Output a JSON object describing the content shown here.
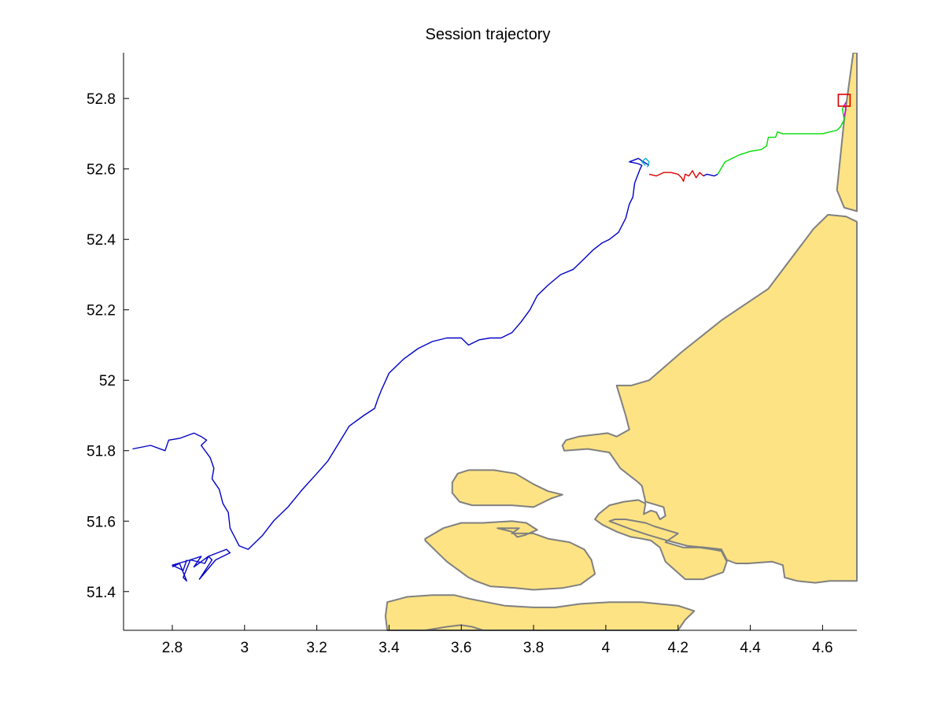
{
  "chart_data": {
    "type": "line",
    "title": "Session trajectory",
    "xlabel": "",
    "ylabel": "",
    "xlim": [
      2.665,
      4.695
    ],
    "ylim": [
      51.29,
      52.93
    ],
    "x_ticks": [
      2.8,
      3,
      3.2,
      3.4,
      3.6,
      3.8,
      4,
      4.2,
      4.4,
      4.6
    ],
    "x_tick_labels": [
      "2.8",
      "3",
      "3.2",
      "3.4",
      "3.6",
      "3.8",
      "4",
      "4.2",
      "4.4",
      "4.6"
    ],
    "y_ticks": [
      51.4,
      51.6,
      51.8,
      52,
      52.2,
      52.4,
      52.6,
      52.8
    ],
    "y_tick_labels": [
      "51.4",
      "51.6",
      "51.8",
      "52",
      "52.2",
      "52.4",
      "52.6",
      "52.8"
    ],
    "grid": false,
    "colors": {
      "land_fill": "#fde383",
      "coast_line": "#808080",
      "axis": "#000000"
    },
    "land": [
      [
        [
          4.685,
          52.93
        ],
        [
          4.66,
          52.74
        ],
        [
          4.64,
          52.54
        ],
        [
          4.66,
          52.49
        ],
        [
          4.695,
          52.48
        ],
        [
          4.695,
          52.93
        ]
      ],
      [
        [
          4.695,
          52.45
        ],
        [
          4.665,
          52.465
        ],
        [
          4.615,
          52.47
        ],
        [
          4.575,
          52.43
        ],
        [
          4.45,
          52.26
        ],
        [
          4.32,
          52.17
        ],
        [
          4.21,
          52.08
        ],
        [
          4.12,
          52.0
        ],
        [
          4.07,
          51.985
        ],
        [
          4.03,
          51.985
        ],
        [
          4.055,
          51.9
        ],
        [
          4.065,
          51.86
        ],
        [
          4.03,
          51.84
        ],
        [
          4.005,
          51.85
        ],
        [
          3.925,
          51.84
        ],
        [
          3.89,
          51.83
        ],
        [
          3.88,
          51.815
        ],
        [
          3.885,
          51.8
        ],
        [
          3.95,
          51.805
        ],
        [
          4.01,
          51.795
        ],
        [
          4.04,
          51.75
        ],
        [
          4.09,
          51.71
        ],
        [
          4.1,
          51.7
        ],
        [
          4.11,
          51.655
        ],
        [
          4.16,
          51.64
        ],
        [
          4.165,
          51.615
        ],
        [
          4.15,
          51.605
        ],
        [
          4.14,
          51.625
        ],
        [
          4.125,
          51.63
        ],
        [
          4.105,
          51.62
        ],
        [
          4.11,
          51.65
        ],
        [
          4.09,
          51.66
        ],
        [
          4.05,
          51.655
        ],
        [
          4.01,
          51.645
        ],
        [
          3.98,
          51.62
        ],
        [
          3.97,
          51.605
        ],
        [
          3.99,
          51.59
        ],
        [
          4.03,
          51.57
        ],
        [
          4.07,
          51.555
        ],
        [
          4.1,
          51.55
        ],
        [
          4.125,
          51.545
        ],
        [
          4.15,
          51.525
        ],
        [
          4.165,
          51.485
        ],
        [
          4.22,
          51.435
        ],
        [
          4.27,
          51.435
        ],
        [
          4.325,
          51.455
        ],
        [
          4.335,
          51.485
        ],
        [
          4.32,
          51.515
        ],
        [
          4.295,
          51.52
        ],
        [
          4.26,
          51.525
        ],
        [
          4.215,
          51.525
        ],
        [
          4.165,
          51.54
        ],
        [
          4.2,
          51.565
        ],
        [
          4.135,
          51.585
        ],
        [
          4.11,
          51.595
        ],
        [
          4.055,
          51.605
        ],
        [
          4.025,
          51.605
        ],
        [
          4.01,
          51.6
        ],
        [
          4.075,
          51.575
        ],
        [
          4.12,
          51.56
        ],
        [
          4.17,
          51.545
        ],
        [
          4.225,
          51.53
        ],
        [
          4.275,
          51.525
        ],
        [
          4.32,
          51.52
        ],
        [
          4.335,
          51.49
        ],
        [
          4.36,
          51.48
        ],
        [
          4.395,
          51.48
        ],
        [
          4.46,
          51.485
        ],
        [
          4.49,
          51.475
        ],
        [
          4.495,
          51.44
        ],
        [
          4.53,
          51.43
        ],
        [
          4.58,
          51.425
        ],
        [
          4.62,
          51.43
        ],
        [
          4.67,
          51.43
        ],
        [
          4.695,
          51.43
        ]
      ],
      [
        [
          3.62,
          51.745
        ],
        [
          3.69,
          51.745
        ],
        [
          3.75,
          51.735
        ],
        [
          3.8,
          51.705
        ],
        [
          3.84,
          51.685
        ],
        [
          3.88,
          51.675
        ],
        [
          3.85,
          51.665
        ],
        [
          3.83,
          51.655
        ],
        [
          3.8,
          51.64
        ],
        [
          3.74,
          51.645
        ],
        [
          3.7,
          51.645
        ],
        [
          3.63,
          51.645
        ],
        [
          3.595,
          51.655
        ],
        [
          3.575,
          51.68
        ],
        [
          3.575,
          51.71
        ],
        [
          3.59,
          51.735
        ]
      ],
      [
        [
          3.5,
          51.55
        ],
        [
          3.55,
          51.58
        ],
        [
          3.6,
          51.595
        ],
        [
          3.66,
          51.595
        ],
        [
          3.74,
          51.6
        ],
        [
          3.78,
          51.595
        ],
        [
          3.81,
          51.575
        ],
        [
          3.775,
          51.56
        ],
        [
          3.755,
          51.555
        ],
        [
          3.74,
          51.57
        ],
        [
          3.72,
          51.575
        ],
        [
          3.7,
          51.58
        ],
        [
          3.76,
          51.58
        ],
        [
          3.74,
          51.565
        ],
        [
          3.8,
          51.565
        ],
        [
          3.84,
          51.55
        ],
        [
          3.9,
          51.54
        ],
        [
          3.94,
          51.52
        ],
        [
          3.96,
          51.49
        ],
        [
          3.97,
          51.45
        ],
        [
          3.93,
          51.42
        ],
        [
          3.88,
          51.41
        ],
        [
          3.8,
          51.405
        ],
        [
          3.75,
          51.41
        ],
        [
          3.68,
          51.415
        ],
        [
          3.64,
          51.43
        ],
        [
          3.62,
          51.44
        ],
        [
          3.56,
          51.485
        ],
        [
          3.53,
          51.515
        ],
        [
          3.5,
          51.545
        ]
      ],
      [
        [
          3.395,
          51.29
        ],
        [
          3.39,
          51.33
        ],
        [
          3.395,
          51.37
        ],
        [
          3.45,
          51.385
        ],
        [
          3.52,
          51.39
        ],
        [
          3.58,
          51.39
        ],
        [
          3.62,
          51.38
        ],
        [
          3.67,
          51.37
        ],
        [
          3.72,
          51.36
        ],
        [
          3.8,
          51.355
        ],
        [
          3.86,
          51.355
        ],
        [
          3.93,
          51.365
        ],
        [
          4.01,
          51.37
        ],
        [
          4.1,
          51.37
        ],
        [
          4.2,
          51.36
        ],
        [
          4.245,
          51.345
        ],
        [
          4.22,
          51.32
        ],
        [
          4.2,
          51.29
        ]
      ],
      [
        [
          3.5,
          51.29
        ],
        [
          3.56,
          51.3
        ],
        [
          3.6,
          51.305
        ],
        [
          3.63,
          51.3
        ],
        [
          3.66,
          51.29
        ]
      ]
    ],
    "series": [
      {
        "color": "#0000c8",
        "x": [
          2.69,
          2.74,
          2.78,
          2.79,
          2.82,
          2.86,
          2.88,
          2.895,
          2.88,
          2.905,
          2.915,
          2.91,
          2.92,
          2.93,
          2.94,
          2.955,
          2.96,
          2.985,
          3.01,
          3.05,
          3.08,
          3.12,
          3.16,
          3.2,
          3.23,
          3.26,
          3.29,
          3.33,
          3.36,
          3.37,
          3.38,
          3.4,
          3.44,
          3.48,
          3.52,
          3.56,
          3.6,
          3.62,
          3.65,
          3.68,
          3.71,
          3.74,
          3.765,
          3.79,
          3.8,
          3.81,
          3.84,
          3.875,
          3.91,
          3.935,
          3.965,
          3.99,
          4.01,
          4.035,
          4.055,
          4.065,
          4.075,
          4.08,
          4.095,
          4.1,
          4.09,
          4.065,
          4.09,
          4.12
        ],
        "y": [
          51.805,
          51.815,
          51.8,
          51.83,
          51.835,
          51.85,
          51.84,
          51.83,
          51.815,
          51.78,
          51.75,
          51.72,
          51.705,
          51.69,
          51.65,
          51.625,
          51.58,
          51.53,
          51.52,
          51.56,
          51.6,
          51.64,
          51.69,
          51.735,
          51.77,
          51.82,
          51.87,
          51.9,
          51.92,
          51.95,
          51.975,
          52.02,
          52.06,
          52.09,
          52.11,
          52.12,
          52.12,
          52.1,
          52.115,
          52.12,
          52.12,
          52.135,
          52.165,
          52.2,
          52.22,
          52.24,
          52.27,
          52.3,
          52.315,
          52.34,
          52.37,
          52.39,
          52.4,
          52.42,
          52.46,
          52.5,
          52.52,
          52.56,
          52.6,
          52.61,
          52.615,
          52.62,
          52.63,
          52.61
        ]
      },
      {
        "color": "#0000c8",
        "x": [
          2.84,
          2.83,
          2.8,
          2.85,
          2.88,
          2.86,
          2.9,
          2.91,
          2.875,
          2.92,
          2.96,
          2.95,
          2.9,
          2.89,
          2.85,
          2.83,
          2.84,
          2.82,
          2.8
        ],
        "y": [
          51.49,
          51.46,
          51.475,
          51.49,
          51.5,
          51.47,
          51.5,
          51.49,
          51.435,
          51.49,
          51.51,
          51.52,
          51.5,
          51.48,
          51.49,
          51.44,
          51.43,
          51.48,
          51.47
        ]
      },
      {
        "color": "#00b4c8",
        "x": [
          4.11,
          4.1,
          4.11,
          4.12,
          4.115
        ],
        "y": [
          52.61,
          52.62,
          52.63,
          52.62,
          52.605
        ]
      },
      {
        "color": "#dc0000",
        "x": [
          4.12,
          4.14,
          4.16,
          4.18,
          4.2,
          4.21,
          4.215,
          4.22,
          4.23,
          4.24,
          4.25,
          4.26,
          4.27
        ],
        "y": [
          52.585,
          52.58,
          52.59,
          52.59,
          52.585,
          52.575,
          52.565,
          52.585,
          52.58,
          52.595,
          52.575,
          52.59,
          52.58
        ]
      },
      {
        "color": "#0000c8",
        "x": [
          4.27,
          4.28,
          4.3,
          4.31
        ],
        "y": [
          52.58,
          52.585,
          52.58,
          52.585
        ]
      },
      {
        "color": "#00dc00",
        "x": [
          4.31,
          4.33,
          4.37,
          4.4,
          4.43,
          4.445,
          4.45,
          4.47,
          4.475,
          4.49,
          4.52,
          4.56,
          4.6,
          4.64,
          4.65,
          4.66,
          4.655,
          4.66
        ],
        "y": [
          52.585,
          52.62,
          52.64,
          52.65,
          52.655,
          52.665,
          52.69,
          52.69,
          52.705,
          52.7,
          52.7,
          52.7,
          52.7,
          52.71,
          52.72,
          52.74,
          52.77,
          52.78
        ]
      },
      {
        "color": "#dc00dc",
        "x": [
          4.66,
          4.665,
          4.66,
          4.665
        ],
        "y": [
          52.75,
          52.77,
          52.78,
          52.79
        ]
      }
    ],
    "markers": [
      {
        "shape": "square",
        "color": "#dc0000",
        "x": 4.66,
        "y": 52.795
      }
    ]
  }
}
